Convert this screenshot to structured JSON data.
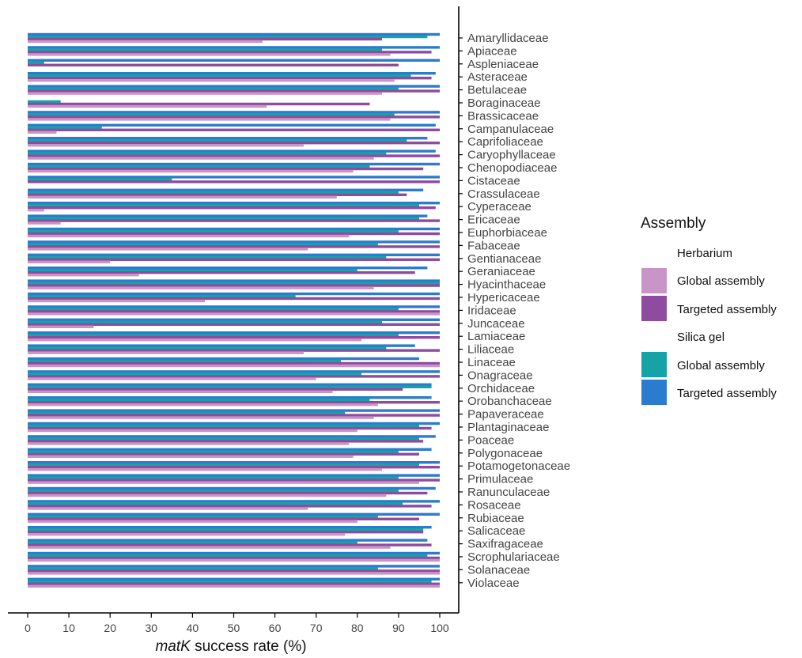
{
  "chart_data": {
    "type": "bar",
    "orientation": "horizontal",
    "xlabel_italic": "matK",
    "xlabel_rest": " success rate (%)",
    "xlim": [
      0,
      100
    ],
    "xticks": [
      "0",
      "10",
      "20",
      "30",
      "40",
      "50",
      "60",
      "70",
      "80",
      "90",
      "100"
    ],
    "grid": false,
    "legend": {
      "title": "Assembly",
      "position": "right",
      "groups": [
        {
          "label": "Herbarium",
          "entries": [
            {
              "label": "Global assembly",
              "series": "herb_global"
            },
            {
              "label": "Targeted assembly",
              "series": "herb_targeted"
            }
          ]
        },
        {
          "label": "Silica gel",
          "entries": [
            {
              "label": "Global assembly",
              "series": "silica_global"
            },
            {
              "label": "Targeted assembly",
              "series": "silica_targeted"
            }
          ]
        }
      ]
    },
    "colors": {
      "herb_global": "#c994c7",
      "herb_targeted": "#8e4b9f",
      "silica_global": "#16a3a8",
      "silica_targeted": "#2b7bce"
    },
    "categories": [
      "Amaryllidaceae",
      "Apiaceae",
      "Aspleniaceae",
      "Asteraceae",
      "Betulaceae",
      "Boraginaceae",
      "Brassicaceae",
      "Campanulaceae",
      "Caprifoliaceae",
      "Caryophyllaceae",
      "Chenopodiaceae",
      "Cistaceae",
      "Crassulaceae",
      "Cyperaceae",
      "Ericaceae",
      "Euphorbiaceae",
      "Fabaceae",
      "Gentianaceae",
      "Geraniaceae",
      "Hyacinthaceae",
      "Hypericaceae",
      "Iridaceae",
      "Juncaceae",
      "Lamiaceae",
      "Liliaceae",
      "Linaceae",
      "Onagraceae",
      "Orchidaceae",
      "Orobanchaceae",
      "Papaveraceae",
      "Plantaginaceae",
      "Poaceae",
      "Polygonaceae",
      "Potamogetonaceae",
      "Primulaceae",
      "Ranunculaceae",
      "Rosaceae",
      "Rubiaceae",
      "Salicaceae",
      "Saxifragaceae",
      "Scrophulariaceae",
      "Solanaceae",
      "Violaceae"
    ],
    "series": [
      {
        "key": "silica_targeted",
        "name": "Targeted assembly",
        "group": "Silica gel",
        "values": [
          100,
          100,
          100,
          99,
          100,
          0,
          100,
          99,
          97,
          99,
          100,
          100,
          96,
          100,
          97,
          100,
          100,
          100,
          97,
          100,
          100,
          100,
          100,
          100,
          94,
          95,
          100,
          98,
          98,
          100,
          100,
          99,
          98,
          100,
          100,
          99,
          100,
          100,
          98,
          97,
          100,
          100,
          100
        ]
      },
      {
        "key": "silica_global",
        "name": "Global assembly",
        "group": "Silica gel",
        "values": [
          97,
          86,
          4,
          93,
          90,
          8,
          89,
          18,
          92,
          87,
          83,
          35,
          90,
          95,
          95,
          90,
          85,
          87,
          80,
          100,
          65,
          90,
          86,
          90,
          87,
          76,
          81,
          98,
          83,
          77,
          95,
          95,
          90,
          95,
          90,
          90,
          91,
          85,
          96,
          80,
          97,
          85,
          98
        ]
      },
      {
        "key": "herb_targeted",
        "name": "Targeted assembly",
        "group": "Herbarium",
        "values": [
          86,
          98,
          90,
          98,
          100,
          83,
          100,
          100,
          100,
          100,
          96,
          100,
          92,
          99,
          100,
          100,
          100,
          100,
          94,
          100,
          100,
          100,
          100,
          100,
          100,
          100,
          100,
          91,
          100,
          100,
          98,
          96,
          95,
          100,
          100,
          97,
          98,
          95,
          96,
          98,
          100,
          100,
          100
        ]
      },
      {
        "key": "herb_global",
        "name": "Global assembly",
        "group": "Herbarium",
        "values": [
          57,
          88,
          0,
          89,
          86,
          58,
          88,
          7,
          67,
          84,
          79,
          0,
          75,
          4,
          8,
          78,
          68,
          20,
          27,
          84,
          43,
          100,
          16,
          81,
          67,
          100,
          70,
          74,
          85,
          84,
          80,
          78,
          79,
          86,
          95,
          87,
          68,
          80,
          77,
          88,
          100,
          100,
          100
        ]
      }
    ]
  }
}
